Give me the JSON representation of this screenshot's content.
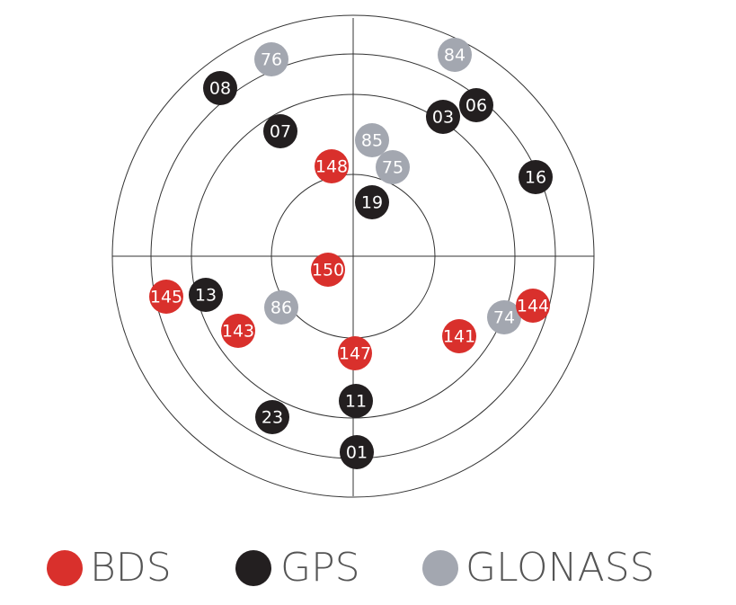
{
  "systems": [
    {
      "name": "BDS",
      "color": "#d9302c",
      "satellites": [
        "148",
        "150",
        "145",
        "143",
        "147",
        "141",
        "144"
      ]
    },
    {
      "name": "GPS",
      "color": "#231f20",
      "satellites": [
        "08",
        "07",
        "03",
        "06",
        "16",
        "19",
        "13",
        "11",
        "23",
        "01"
      ]
    },
    {
      "name": "GLONASS",
      "color": "#a3a7b0",
      "satellites": [
        "76",
        "84",
        "85",
        "75",
        "86",
        "74"
      ]
    }
  ]
}
